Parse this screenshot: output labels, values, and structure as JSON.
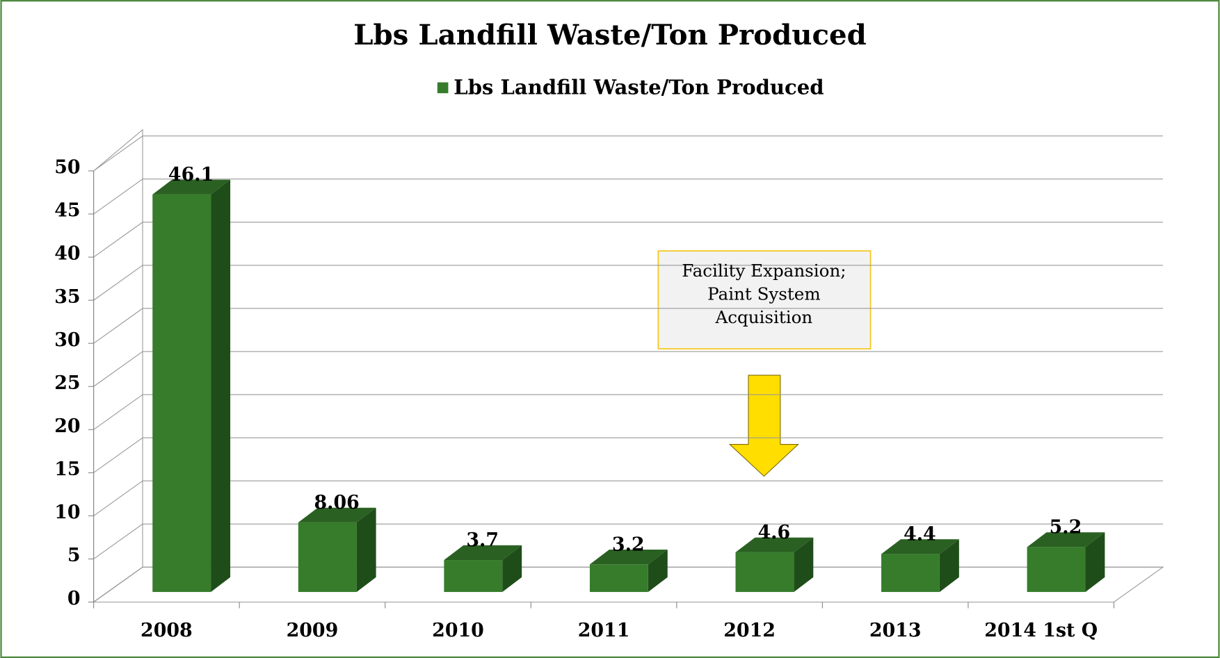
{
  "chart_data": {
    "type": "bar3d",
    "title": "Lbs Landfill Waste/Ton Produced",
    "series": [
      {
        "name": "Lbs Landfill Waste/Ton Produced",
        "color": "#367c2b",
        "values": [
          46.1,
          8.06,
          3.7,
          3.2,
          4.6,
          4.4,
          5.2
        ]
      }
    ],
    "categories": [
      "2008",
      "2009",
      "2010",
      "2011",
      "2012",
      "2013",
      "2014 1st Q"
    ],
    "ylim": [
      0,
      50
    ],
    "yticks": [
      0,
      5,
      10,
      15,
      20,
      25,
      30,
      35,
      40,
      45,
      50
    ],
    "grid": true,
    "legend": "top",
    "annotation": [
      "Facility Expansion;",
      "Paint System",
      "Acquisition"
    ]
  }
}
